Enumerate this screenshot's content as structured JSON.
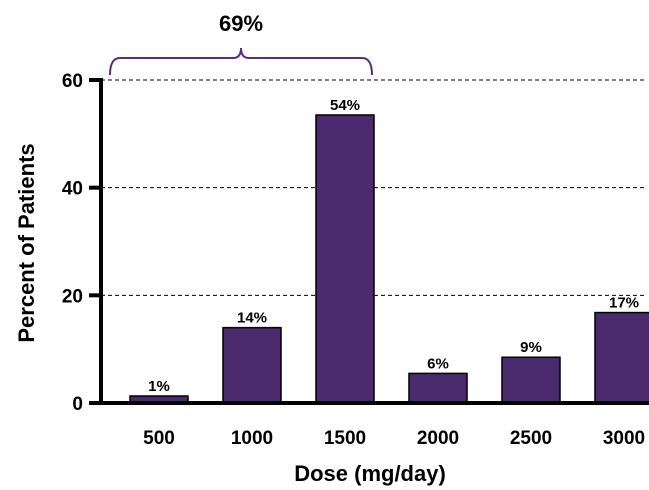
{
  "chart_data": {
    "type": "bar",
    "categories": [
      "500",
      "1000",
      "1500",
      "2000",
      "2500",
      "3000"
    ],
    "values": [
      1.3,
      14,
      53.5,
      5.5,
      8.5,
      16.8
    ],
    "data_labels": [
      "1%",
      "14%",
      "54%",
      "6%",
      "9%",
      "17%"
    ],
    "title": "",
    "xlabel": "Dose (mg/day)",
    "ylabel": "Percent of Patients",
    "ylim": [
      0,
      60
    ],
    "yticks": [
      "0",
      "20",
      "40",
      "60"
    ],
    "grid": "dashed horizontal at 20, 40, 60",
    "bar_color": "#4b2a6e",
    "bracket": {
      "label": "69%",
      "categories": [
        "500",
        "1000",
        "1500"
      ],
      "color": "#5b2c83"
    }
  }
}
